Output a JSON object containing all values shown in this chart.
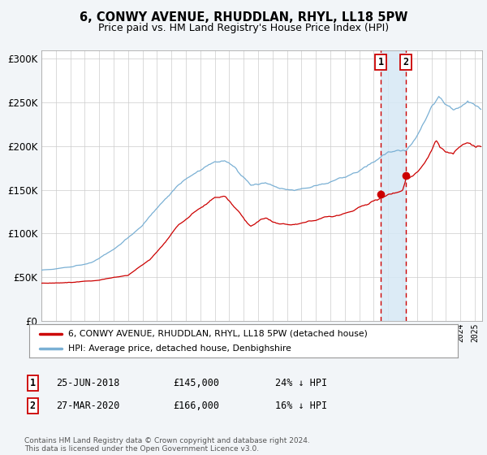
{
  "title": "6, CONWY AVENUE, RHUDDLAN, RHYL, LL18 5PW",
  "subtitle": "Price paid vs. HM Land Registry's House Price Index (HPI)",
  "title_fontsize": 10.5,
  "subtitle_fontsize": 9,
  "ylim": [
    0,
    310000
  ],
  "yticks": [
    0,
    50000,
    100000,
    150000,
    200000,
    250000,
    300000
  ],
  "sale1_date_num": 2018.48,
  "sale1_price": 145000,
  "sale1_label": "25-JUN-2018",
  "sale1_amount": "£145,000",
  "sale1_pct": "24% ↓ HPI",
  "sale2_date_num": 2020.23,
  "sale2_price": 166000,
  "sale2_label": "27-MAR-2020",
  "sale2_amount": "£166,000",
  "sale2_pct": "16% ↓ HPI",
  "hpi_color": "#7ab0d4",
  "price_color": "#cc0000",
  "background_color": "#f2f5f8",
  "plot_bg_color": "#ffffff",
  "grid_color": "#cccccc",
  "legend_label_price": "6, CONWY AVENUE, RHUDDLAN, RHYL, LL18 5PW (detached house)",
  "legend_label_hpi": "HPI: Average price, detached house, Denbighshire",
  "footer": "Contains HM Land Registry data © Crown copyright and database right 2024.\nThis data is licensed under the Open Government Licence v3.0.",
  "shade_color": "#d6e8f5",
  "xstart": 1995.0,
  "xend": 2025.5
}
